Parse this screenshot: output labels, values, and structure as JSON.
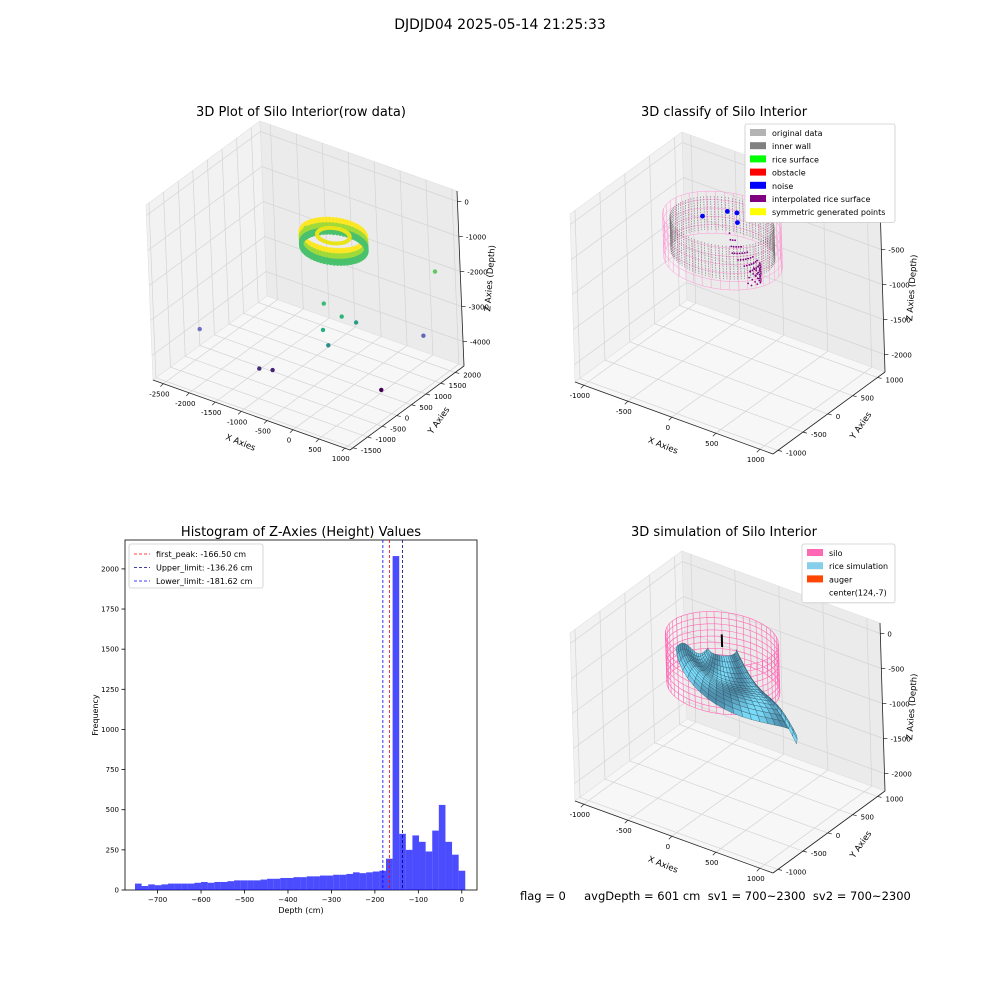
{
  "figure": {
    "suptitle": "DJDJD04 2025-05-14 21:25:33",
    "info_line": "flag = 0     avgDepth = 601 cm  sv1 = 700~2300  sv2 = 700~2300"
  },
  "chart_data": [
    {
      "type": "scatter",
      "title": "3D Plot of Silo Interior(row data)",
      "xlabel": "X Axies",
      "ylabel": "Y Axies",
      "zlabel": "Z Axies (Depth)",
      "x_ticks": [
        "-2500",
        "-2000",
        "-1500",
        "-1000",
        "-500",
        "0",
        "500",
        "1000"
      ],
      "y_ticks": [
        "-1500",
        "-1000",
        "-500",
        "0",
        "500",
        "1000",
        "1500",
        "2000"
      ],
      "z_ticks": [
        "0",
        "-1000",
        "-2000",
        "-3000",
        "-4000"
      ],
      "xlim": [
        -2700,
        1100
      ],
      "ylim": [
        -1600,
        2300
      ],
      "zlim": [
        -4700,
        300
      ],
      "colormap": "viridis",
      "ring": {
        "center": [
          0,
          0
        ],
        "radius": 550,
        "z_top": -100,
        "z_bottom": -500,
        "colors": [
          "#fde725",
          "#9fda3a",
          "#4ac16d"
        ]
      },
      "outliers": [
        {
          "x": -1300,
          "y": 1300,
          "z": -1400,
          "color": "#a0da39"
        },
        {
          "x": 900,
          "y": 1800,
          "z": -1800,
          "color": "#5ec962"
        },
        {
          "x": -300,
          "y": 100,
          "z": -2300,
          "color": "#3cbb75"
        },
        {
          "x": 100,
          "y": 0,
          "z": -2400,
          "color": "#2fb47c"
        },
        {
          "x": -100,
          "y": -300,
          "z": -2700,
          "color": "#26ad81"
        },
        {
          "x": 200,
          "y": 300,
          "z": -2700,
          "color": "#2a9c8a"
        },
        {
          "x": 50,
          "y": -400,
          "z": -3000,
          "color": "#2c8e8c"
        },
        {
          "x": -2100,
          "y": -1000,
          "z": -3300,
          "color": "#6f6fc4"
        },
        {
          "x": 800,
          "y": 1500,
          "z": -3500,
          "color": "#6366b8"
        },
        {
          "x": -1200,
          "y": -600,
          "z": -4200,
          "color": "#472c7a"
        },
        {
          "x": -1000,
          "y": -500,
          "z": -4200,
          "color": "#482173"
        },
        {
          "x": 700,
          "y": 200,
          "z": -4300,
          "color": "#440154"
        }
      ]
    },
    {
      "type": "scatter",
      "title": "3D classify of Silo Interior",
      "xlabel": "X Axies",
      "ylabel": "Y Axies",
      "zlabel": "Z Axies (Depth)",
      "x_ticks": [
        "-1000",
        "-500",
        "0",
        "500",
        "1000"
      ],
      "y_ticks": [
        "-1000",
        "-500",
        "0",
        "500",
        "1000"
      ],
      "z_ticks": [
        "0",
        "-500",
        "-1000",
        "-1500",
        "-2000"
      ],
      "xlim": [
        -1100,
        1150
      ],
      "ylim": [
        -1100,
        1150
      ],
      "zlim": [
        -2250,
        150
      ],
      "legend": [
        {
          "label": "original data",
          "color": "#b3b3b3"
        },
        {
          "label": "inner wall",
          "color": "#808080"
        },
        {
          "label": "rice surface",
          "color": "#00ff00"
        },
        {
          "label": "obstacle",
          "color": "#ff0000"
        },
        {
          "label": "noise",
          "color": "#0000ff"
        },
        {
          "label": "interpolated rice surface",
          "color": "#800080"
        },
        {
          "label": "symmetric generated points",
          "color": "#ffff00"
        }
      ],
      "legend_loc": "upper right",
      "silo": {
        "radius": 560,
        "z_top": 0,
        "z_bottom": -600,
        "wall_z_bottom": -500
      },
      "noise": [
        {
          "x": -80,
          "y": 250,
          "z": -50
        },
        {
          "x": 0,
          "y": 300,
          "z": -60
        },
        {
          "x": 120,
          "y": 350,
          "z": -30
        },
        {
          "x": 60,
          "y": 200,
          "z": -120
        },
        {
          "x": 200,
          "y": 250,
          "z": -40
        },
        {
          "x": -250,
          "y": 50,
          "z": -90
        }
      ]
    },
    {
      "type": "bar",
      "title": "Histogram of Z-Axies (Height) Values",
      "xlabel": "Depth (cm)",
      "ylabel": "Frequency",
      "xlim": [
        -775,
        35
      ],
      "ylim": [
        0,
        2180
      ],
      "x_ticks": [
        -700,
        -600,
        -500,
        -400,
        -300,
        -200,
        -100,
        0
      ],
      "y_ticks": [
        0,
        250,
        500,
        750,
        1000,
        1250,
        1500,
        1750,
        2000
      ],
      "bin_width": 15.2,
      "bins_start": -752,
      "values": [
        40,
        25,
        35,
        30,
        35,
        40,
        40,
        40,
        40,
        45,
        50,
        45,
        50,
        50,
        55,
        60,
        60,
        60,
        60,
        65,
        70,
        70,
        75,
        75,
        80,
        80,
        85,
        85,
        90,
        90,
        95,
        95,
        100,
        110,
        105,
        110,
        115,
        120,
        195,
        2080,
        350,
        250,
        340,
        300,
        240,
        370,
        530,
        300,
        220,
        120
      ],
      "color": "#0000ff",
      "lines": [
        {
          "label": "first_peak: -166.50 cm",
          "x": -166.5,
          "color": "#ff0000"
        },
        {
          "label": "Upper_limit: -136.26 cm",
          "x": -136.26,
          "color": "#000080"
        },
        {
          "label": "Lower_limit: -181.62 cm",
          "x": -181.62,
          "color": "#0000ff"
        }
      ],
      "legend_loc": "upper left"
    },
    {
      "type": "surface",
      "title": "3D simulation of Silo Interior",
      "xlabel": "X Axies",
      "ylabel": "Y Axies",
      "zlabel": "Z Axies (Depth)",
      "x_ticks": [
        "-1000",
        "-500",
        "0",
        "500",
        "1000"
      ],
      "y_ticks": [
        "-1000",
        "-500",
        "0",
        "500",
        "1000"
      ],
      "z_ticks": [
        "0",
        "-500",
        "-1000",
        "-1500",
        "-2000"
      ],
      "xlim": [
        -1100,
        1150
      ],
      "ylim": [
        -1100,
        1150
      ],
      "zlim": [
        -2250,
        150
      ],
      "legend": [
        {
          "label": "silo",
          "color": "#ff69b4"
        },
        {
          "label": "rice simulation",
          "color": "#87ceeb"
        },
        {
          "label": "auger",
          "color": "#ff4500"
        },
        {
          "label": "center(124,-7)",
          "color": ""
        }
      ],
      "legend_loc": "upper right",
      "silo": {
        "radius": 560,
        "z_top": 0,
        "z_bottom": -700
      }
    }
  ]
}
